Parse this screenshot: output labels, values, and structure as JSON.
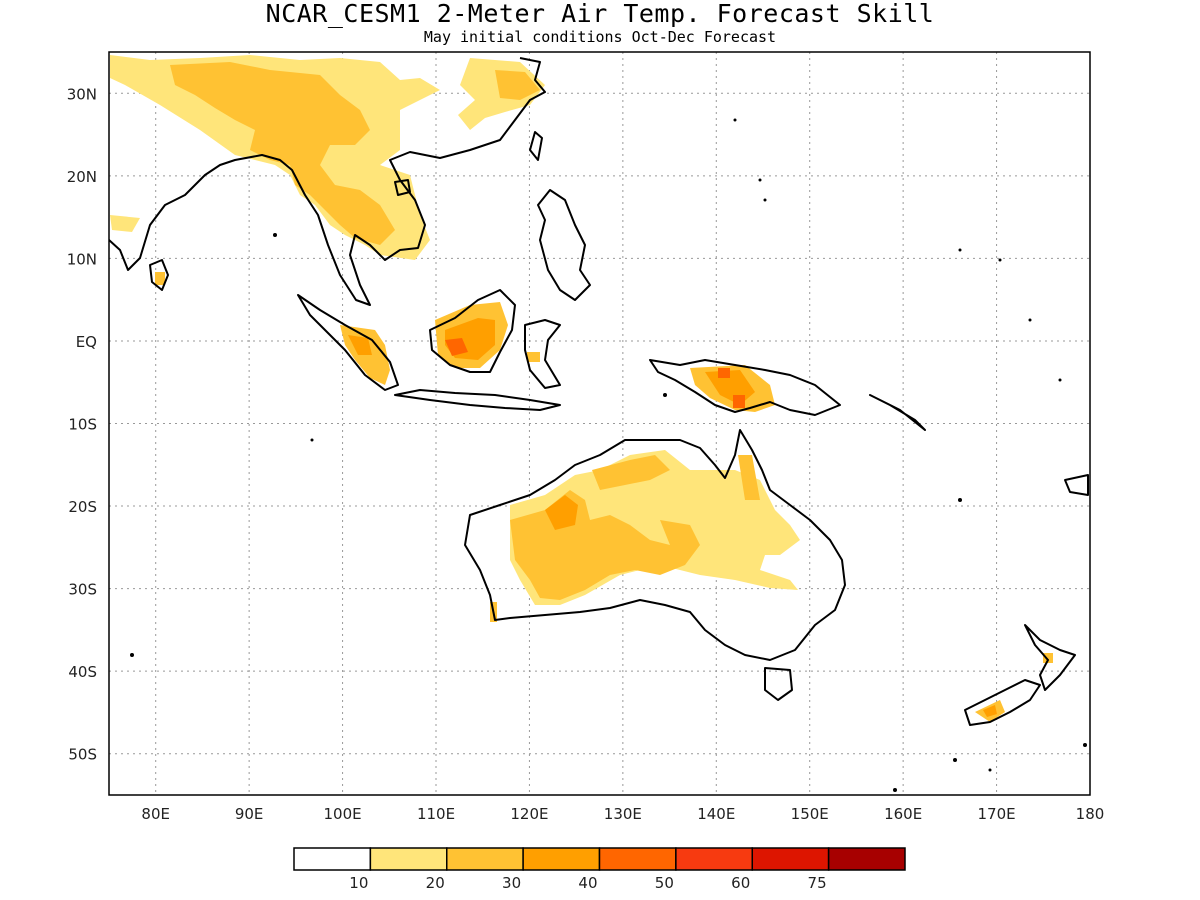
{
  "title": "NCAR_CESM1 2-Meter Air Temp. Forecast Skill",
  "subtitle": "May initial conditions  Oct-Dec Forecast",
  "colors": {
    "land_outline": "#000000",
    "grid": "#999999",
    "levels": [
      "#ffffff",
      "#ffe57a",
      "#ffc233",
      "#ff9f00",
      "#ff6600",
      "#f73a10",
      "#dd1500",
      "#a70000"
    ]
  },
  "map": {
    "lon_range": [
      75,
      180
    ],
    "lat_range": [
      -55,
      35
    ],
    "lon_ticks": [
      "80E",
      "90E",
      "100E",
      "110E",
      "120E",
      "130E",
      "140E",
      "150E",
      "160E",
      "170E",
      "180"
    ],
    "lat_ticks": [
      "30N",
      "20N",
      "10N",
      "EQ",
      "10S",
      "20S",
      "30S",
      "40S",
      "50S"
    ]
  },
  "colorbar": {
    "labels": [
      "10",
      "20",
      "30",
      "40",
      "50",
      "60",
      "75"
    ]
  }
}
